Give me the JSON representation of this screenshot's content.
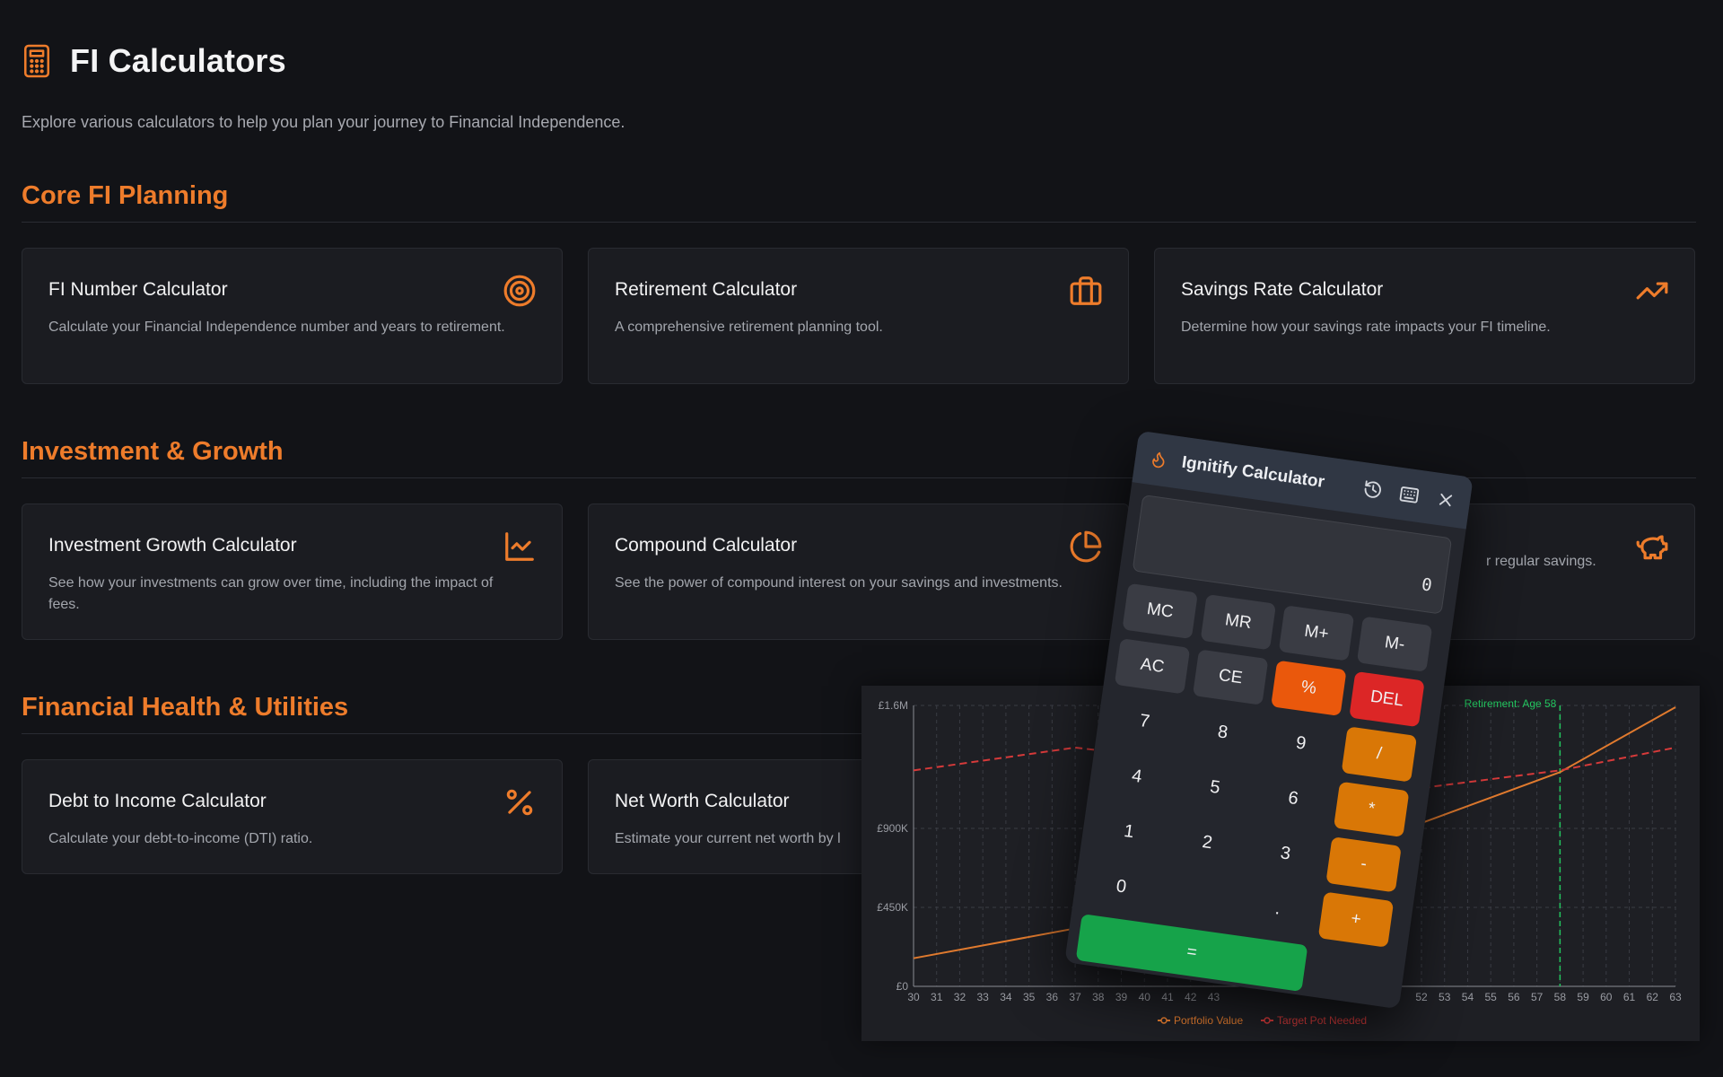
{
  "header": {
    "title": "FI Calculators",
    "subtitle": "Explore various calculators to help you plan your journey to Financial Independence."
  },
  "sections": [
    {
      "title": "Core FI Planning",
      "cards": [
        {
          "title": "FI Number Calculator",
          "desc": "Calculate your Financial Independence number and years to retirement.",
          "icon": "target-icon"
        },
        {
          "title": "Retirement Calculator",
          "desc": "A comprehensive retirement planning tool.",
          "icon": "briefcase-icon"
        },
        {
          "title": "Savings Rate Calculator",
          "desc": "Determine how your savings rate impacts your FI timeline.",
          "icon": "trending-up-icon"
        }
      ]
    },
    {
      "title": "Investment & Growth",
      "cards": [
        {
          "title": "Investment Growth Calculator",
          "desc": "See how your investments can grow over time, including the impact of fees.",
          "icon": "line-chart-icon"
        },
        {
          "title": "Compound Calculator",
          "desc": "See the power of compound interest on your savings and investments.",
          "icon": "pie-chart-icon"
        },
        {
          "title": "",
          "desc": "r regular savings.",
          "icon": "piggy-bank-icon"
        }
      ]
    },
    {
      "title": "Financial Health & Utilities",
      "cards": [
        {
          "title": "Debt to Income Calculator",
          "desc": "Calculate your debt-to-income (DTI) ratio.",
          "icon": "percent-icon"
        },
        {
          "title": "Net Worth Calculator",
          "desc": "Estimate your current net worth by l",
          "icon": ""
        }
      ]
    }
  ],
  "chart_data": {
    "type": "line",
    "y_ticks": [
      "£1.6M",
      "£900K",
      "£450K",
      "£0"
    ],
    "x_ticks": [
      "30",
      "31",
      "32",
      "33",
      "34",
      "35",
      "36",
      "37",
      "38",
      "39",
      "40",
      "41",
      "42",
      "43",
      "52",
      "53",
      "54",
      "55",
      "56",
      "57",
      "58",
      "59",
      "60",
      "61",
      "62",
      "63"
    ],
    "ylim": [
      0,
      1600000
    ],
    "xlim": [
      30,
      63
    ],
    "annotation": "Retirement: Age 58",
    "retirement_age": 58,
    "series": [
      {
        "name": "Portfolio Value",
        "color": "#e07a2e",
        "style": "solid",
        "x": [
          30,
          37,
          38,
          52,
          58,
          63
        ],
        "y": [
          160000,
          330000,
          380000,
          930000,
          1220000,
          1590000
        ]
      },
      {
        "name": "Target Pot Needed",
        "color": "#d63a3a",
        "style": "dashed",
        "x": [
          30,
          37,
          52,
          58,
          63
        ],
        "y": [
          1230000,
          1360000,
          1130000,
          1230000,
          1360000
        ]
      }
    ],
    "legend": [
      "Portfolio Value",
      "Target Pot Needed"
    ],
    "grid": true
  },
  "calculator": {
    "title": "Ignitify Calculator",
    "display": "0",
    "icons": [
      "history-icon",
      "keyboard-icon",
      "close-icon"
    ],
    "keys": [
      {
        "label": "MC",
        "kind": "mem"
      },
      {
        "label": "MR",
        "kind": "mem"
      },
      {
        "label": "M+",
        "kind": "mem"
      },
      {
        "label": "M-",
        "kind": "mem"
      },
      {
        "label": "AC",
        "kind": "mem"
      },
      {
        "label": "CE",
        "kind": "mem"
      },
      {
        "label": "%",
        "kind": "pct"
      },
      {
        "label": "DEL",
        "kind": "del"
      },
      {
        "label": "7",
        "kind": "num"
      },
      {
        "label": "8",
        "kind": "num"
      },
      {
        "label": "9",
        "kind": "num"
      },
      {
        "label": "/",
        "kind": "op"
      },
      {
        "label": "4",
        "kind": "num"
      },
      {
        "label": "5",
        "kind": "num"
      },
      {
        "label": "6",
        "kind": "num"
      },
      {
        "label": "*",
        "kind": "op"
      },
      {
        "label": "1",
        "kind": "num"
      },
      {
        "label": "2",
        "kind": "num"
      },
      {
        "label": "3",
        "kind": "num"
      },
      {
        "label": "-",
        "kind": "op"
      },
      {
        "label": "0",
        "kind": "num"
      },
      {
        "label": "",
        "kind": "num"
      },
      {
        "label": ".",
        "kind": "num"
      },
      {
        "label": "+",
        "kind": "op"
      },
      {
        "label": "=",
        "kind": "eq"
      }
    ]
  }
}
